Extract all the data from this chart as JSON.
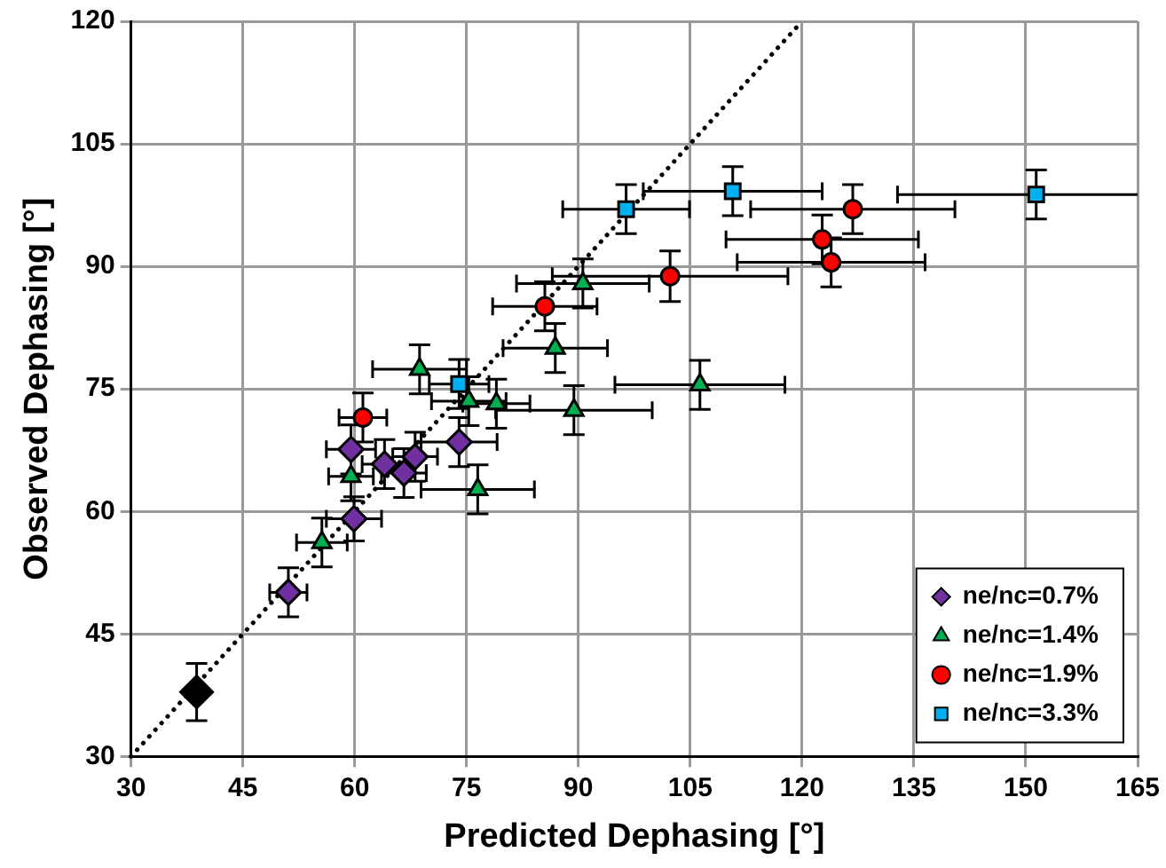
{
  "chart_data": {
    "type": "scatter",
    "xlabel": "Predicted Dephasing [°]",
    "ylabel": "Observed Dephasing [°]",
    "xlim": [
      30,
      165
    ],
    "xticks": [
      30,
      45,
      60,
      75,
      90,
      105,
      120,
      135,
      150,
      165
    ],
    "ylim": [
      30,
      120
    ],
    "yticks": [
      30,
      45,
      60,
      75,
      90,
      105,
      120
    ],
    "grid": true,
    "legend": "bottom right",
    "series": [
      {
        "name": "ne/nc=0.7%",
        "color": "#7030a0",
        "marker": "diamond",
        "x": [
          51.1,
          59.9,
          59.5,
          64.0,
          66.6,
          68.1,
          74.0
        ],
        "values": [
          50.1,
          59.1,
          67.6,
          65.8,
          64.7,
          66.7,
          68.5
        ],
        "errors": [
          3,
          2.7,
          3,
          3,
          3,
          3,
          3
        ],
        "xerrors": [
          2.5,
          3.7,
          3.3,
          3,
          3,
          3,
          5.1
        ]
      },
      {
        "name": "ne/nc=1.4%",
        "color": "#00b050",
        "marker": "triangle",
        "x": [
          55.6,
          59.5,
          76.5,
          68.7,
          75.3,
          79.0,
          89.4,
          86.9,
          90.6,
          106.3
        ],
        "values": [
          56.2,
          64.3,
          62.7,
          77.4,
          73.5,
          73.2,
          72.4,
          80.0,
          87.9,
          75.5
        ],
        "errors": [
          3,
          3,
          3,
          3,
          3,
          3,
          3,
          3,
          3,
          3
        ],
        "xerrors": [
          3.4,
          3,
          7.6,
          6.3,
          5,
          4.5,
          10.5,
          7,
          8.9,
          11.4
        ]
      },
      {
        "name": "ne/nc=1.9%",
        "color": "#ff0000",
        "marker": "circle",
        "x": [
          61.1,
          85.5,
          102.3,
          126.8,
          122.7,
          123.9
        ],
        "values": [
          71.5,
          85.1,
          88.8,
          97.0,
          93.3,
          90.5
        ],
        "errors": [
          3,
          3,
          3.1,
          3,
          3,
          3
        ],
        "xerrors": [
          3.2,
          7,
          15.8,
          13.7,
          12.9,
          12.6
        ]
      },
      {
        "name": "ne/nc=3.3%",
        "color": "#00b0f0",
        "marker": "square",
        "x": [
          74.0,
          96.4,
          110.7,
          151.4
        ],
        "values": [
          75.6,
          97.0,
          99.2,
          98.8
        ],
        "errors": [
          3,
          3,
          3,
          3
        ],
        "xerrors": [
          4,
          8.5,
          12,
          [
            132.8,
            165
          ]
        ]
      },
      {
        "color": "#000000",
        "marker": "diamond",
        "x": [
          38.8
        ],
        "values": [
          37.9
        ],
        "errors": [
          3.5
        ]
      },
      {
        "type": "line",
        "color": "#000000",
        "line_style": "dotted",
        "marker": "none",
        "x": [
          30,
          120
        ],
        "values": [
          30,
          120
        ]
      }
    ]
  }
}
